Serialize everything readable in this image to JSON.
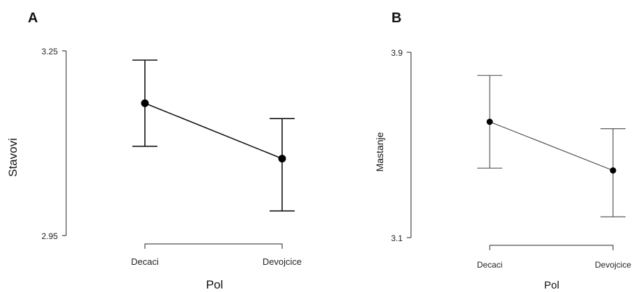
{
  "chart_data": [
    {
      "type": "line",
      "panel": "A",
      "categories": [
        "Decaci",
        "Devojcice"
      ],
      "values": [
        3.165,
        3.075
      ],
      "error_low": [
        3.095,
        2.99
      ],
      "error_high": [
        3.235,
        3.14
      ],
      "ylabel": "Stavovi",
      "xlabel": "Pol",
      "ylim": [
        2.95,
        3.25
      ],
      "yticks": [
        "2.95",
        "3.25"
      ],
      "grid": false
    },
    {
      "type": "line",
      "panel": "B",
      "categories": [
        "Decaci",
        "Devojcice"
      ],
      "values": [
        3.6,
        3.39
      ],
      "error_low": [
        3.4,
        3.19
      ],
      "error_high": [
        3.8,
        3.57
      ],
      "ylabel": "Mastanje",
      "xlabel": "Pol",
      "ylim": [
        3.1,
        3.9
      ],
      "yticks": [
        "3.1",
        "3.9"
      ],
      "grid": false
    }
  ]
}
